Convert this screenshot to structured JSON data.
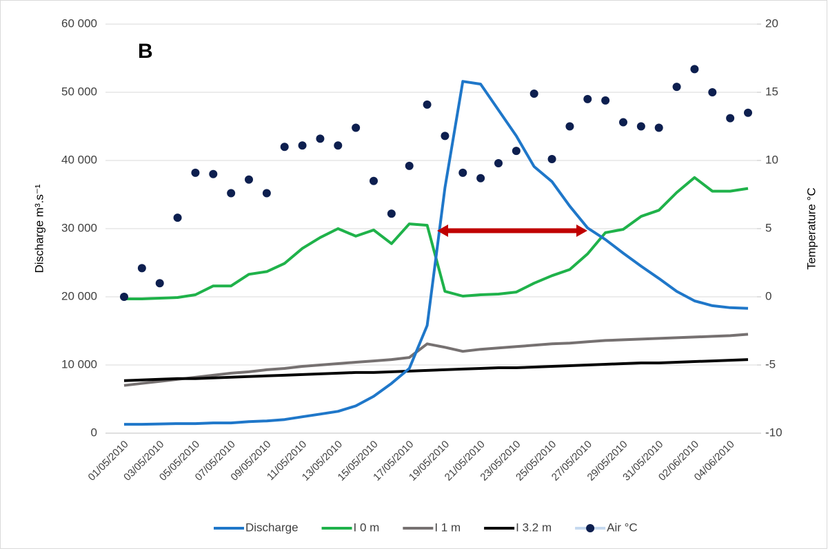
{
  "chart_data": {
    "type": "line",
    "annotation": "B",
    "y_label": "Discharge m³.s⁻¹",
    "y2_label": "Temperature °C",
    "categories": [
      "01/05/2010",
      null,
      "03/05/2010",
      null,
      "05/05/2010",
      null,
      "07/05/2010",
      null,
      "09/05/2010",
      null,
      "11/05/2010",
      null,
      "13/05/2010",
      null,
      "15/05/2010",
      null,
      "17/05/2010",
      null,
      "19/05/2010",
      null,
      "21/05/2010",
      null,
      "23/05/2010",
      null,
      "25/05/2010",
      null,
      "27/05/2010",
      null,
      "29/05/2010",
      null,
      "31/05/2010",
      null,
      "02/06/2010",
      null,
      "04/06/2010",
      null
    ],
    "ylim": [
      0,
      60000
    ],
    "yticks": [
      0,
      {
        "value": 10000,
        "label": "10 000"
      },
      {
        "value": 20000,
        "label": "20 000"
      },
      {
        "value": 30000,
        "label": "30 000"
      },
      {
        "value": 40000,
        "label": "40 000"
      },
      {
        "value": 50000,
        "label": "50 000"
      },
      {
        "value": 60000,
        "label": "60 000"
      }
    ],
    "y2lim": [
      -10,
      20
    ],
    "y2ticks": [
      -10,
      -5,
      0,
      5,
      10,
      15,
      20
    ],
    "grid": true,
    "legend": "bottom",
    "series": [
      {
        "name": "Discharge",
        "color": "#1f77c9",
        "values": [
          1300,
          1300,
          1350,
          1400,
          1400,
          1500,
          1500,
          1700,
          1800,
          2000,
          2400,
          2800,
          3200,
          4000,
          5400,
          7300,
          9500,
          15800,
          36000,
          51600,
          51200,
          47400,
          43600,
          39100,
          36900,
          33300,
          30100,
          28400,
          26400,
          24500,
          22700,
          20800,
          19400,
          18700,
          18400,
          18300
        ]
      },
      {
        "name": "I 0 m",
        "color": "#1fb24a",
        "values": [
          19700,
          19700,
          19800,
          19900,
          20300,
          21600,
          21600,
          23300,
          23700,
          24900,
          27100,
          28700,
          30000,
          28900,
          29800,
          27800,
          30700,
          30500,
          20800,
          20100,
          20300,
          20400,
          20700,
          22000,
          23100,
          24000,
          26300,
          29400,
          29900,
          31800,
          32700,
          35300,
          37500,
          35500,
          35500,
          35900
        ]
      },
      {
        "name": "I 1 m",
        "color": "#767171",
        "values": [
          7000,
          7300,
          7600,
          7900,
          8200,
          8500,
          8800,
          9000,
          9300,
          9500,
          9800,
          10000,
          10200,
          10400,
          10600,
          10800,
          11100,
          13100,
          12600,
          12000,
          12300,
          12500,
          12700,
          12900,
          13100,
          13200,
          13400,
          13600,
          13700,
          13800,
          13900,
          14000,
          14100,
          14200,
          14300,
          14500
        ]
      },
      {
        "name": "I 3.2 m",
        "color": "#000000",
        "values": [
          7700,
          7800,
          7900,
          8000,
          8000,
          8100,
          8200,
          8300,
          8400,
          8500,
          8600,
          8700,
          8800,
          8900,
          8900,
          9000,
          9100,
          9200,
          9300,
          9400,
          9500,
          9600,
          9600,
          9700,
          9800,
          9900,
          10000,
          10100,
          10200,
          10300,
          10300,
          10400,
          10500,
          10600,
          10700,
          10800
        ]
      },
      {
        "name": "Air °C",
        "color": "#0d1f4f",
        "axis": "y2",
        "mode": "markers",
        "values": [
          0.0,
          2.1,
          1.0,
          5.8,
          9.1,
          9.0,
          7.6,
          8.6,
          7.6,
          11.0,
          11.1,
          11.6,
          11.1,
          12.4,
          8.5,
          6.1,
          9.6,
          14.1,
          11.8,
          9.1,
          8.7,
          9.8,
          10.7,
          14.9,
          10.1,
          12.5,
          14.5,
          14.4,
          12.8,
          12.5,
          12.4,
          15.4,
          16.7,
          15.0,
          13.1,
          13.5
        ]
      }
    ]
  }
}
